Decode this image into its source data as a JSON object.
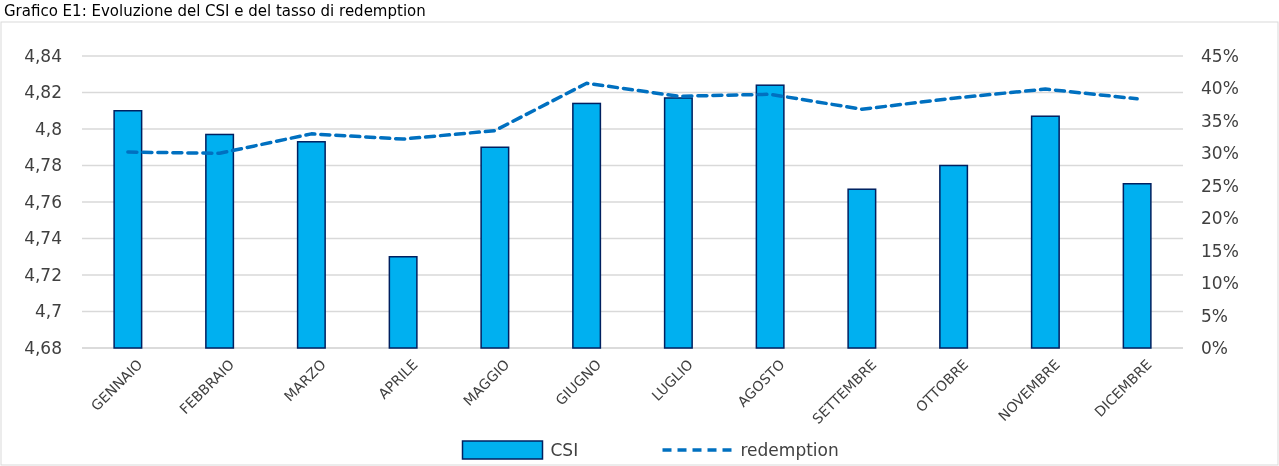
{
  "chart_data": {
    "type": "bar",
    "title": "Grafico E1: Evoluzione del CSI e del tasso di redemption",
    "categories": [
      "GENNAIO",
      "FEBBRAIO",
      "MARZO",
      "APRILE",
      "MAGGIO",
      "GIUGNO",
      "LUGLIO",
      "AGOSTO",
      "SETTEMBRE",
      "OTTOBRE",
      "NOVEMBRE",
      "DICEMBRE"
    ],
    "series": [
      {
        "name": "CSI",
        "color": "#00b0f0",
        "values": [
          4.81,
          4.797,
          4.793,
          4.73,
          4.79,
          4.814,
          4.817,
          4.824,
          4.767,
          4.78,
          4.807,
          4.77
        ]
      },
      {
        "name": "redemption",
        "type": "line",
        "axis": "y2",
        "color": "#0070c0",
        "line_style": "dashed",
        "values": [
          30.2,
          30.0,
          33.0,
          32.2,
          33.5,
          40.8,
          38.8,
          39.1,
          36.8,
          38.5,
          39.9,
          38.4
        ]
      }
    ],
    "ylim": [
      4.68,
      4.84
    ],
    "yticks": [
      {
        "value": 4.68,
        "label": "4,68"
      },
      {
        "value": 4.7,
        "label": "4,7"
      },
      {
        "value": 4.72,
        "label": "4,72"
      },
      {
        "value": 4.74,
        "label": "4,74"
      },
      {
        "value": 4.76,
        "label": "4,76"
      },
      {
        "value": 4.78,
        "label": "4,78"
      },
      {
        "value": 4.8,
        "label": "4,8"
      },
      {
        "value": 4.82,
        "label": "4,82"
      },
      {
        "value": 4.84,
        "label": "4,84"
      }
    ],
    "y2lim": [
      0,
      45
    ],
    "y2ticks": [
      {
        "value": 0,
        "label": "0%"
      },
      {
        "value": 5,
        "label": "5%"
      },
      {
        "value": 10,
        "label": "10%"
      },
      {
        "value": 15,
        "label": "15%"
      },
      {
        "value": 20,
        "label": "20%"
      },
      {
        "value": 25,
        "label": "25%"
      },
      {
        "value": 30,
        "label": "30%"
      },
      {
        "value": 35,
        "label": "35%"
      },
      {
        "value": 40,
        "label": "40%"
      },
      {
        "value": 45,
        "label": "45%"
      }
    ],
    "grid": "y",
    "legend": "bottom",
    "marker": "none"
  }
}
